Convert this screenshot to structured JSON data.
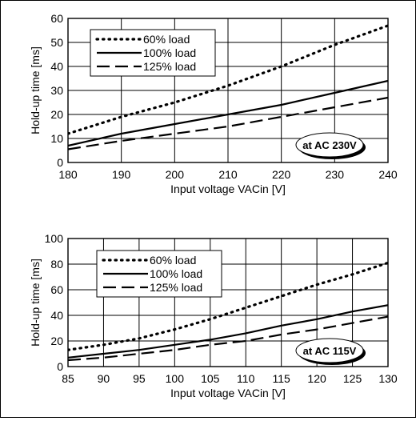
{
  "chart_data": [
    {
      "type": "line",
      "xlabel": "Input voltage VACin [V]",
      "ylabel": "Hold-up time [ms]",
      "xlim": [
        180,
        240
      ],
      "ylim": [
        0,
        60
      ],
      "xticks": [
        "180",
        "190",
        "200",
        "210",
        "220",
        "230",
        "240"
      ],
      "yticks": [
        "0",
        "10",
        "20",
        "30",
        "40",
        "50",
        "60"
      ],
      "grid": true,
      "legend_position": "top-left",
      "annotation": "at AC 230V",
      "series": [
        {
          "name": "60% load",
          "style": "dotted",
          "x": [
            180,
            190,
            200,
            210,
            220,
            230,
            240
          ],
          "y": [
            12,
            19,
            25,
            32,
            40,
            49,
            57
          ]
        },
        {
          "name": "100% load",
          "style": "solid",
          "x": [
            180,
            190,
            200,
            210,
            220,
            230,
            240
          ],
          "y": [
            7,
            12,
            16,
            20,
            24,
            29,
            34
          ]
        },
        {
          "name": "125% load",
          "style": "dashed",
          "x": [
            180,
            190,
            200,
            210,
            220,
            230,
            240
          ],
          "y": [
            5.5,
            9,
            12,
            15,
            19,
            23,
            27
          ]
        }
      ]
    },
    {
      "type": "line",
      "xlabel": "Input voltage VACin [V]",
      "ylabel": "Hold-up time [ms]",
      "xlim": [
        85,
        130
      ],
      "ylim": [
        0,
        100
      ],
      "xticks": [
        "85",
        "90",
        "95",
        "100",
        "105",
        "110",
        "115",
        "120",
        "125",
        "130"
      ],
      "yticks": [
        "0",
        "20",
        "40",
        "60",
        "80",
        "100"
      ],
      "grid": true,
      "legend_position": "top-left",
      "annotation": "at AC 115V",
      "series": [
        {
          "name": "60% load",
          "style": "dotted",
          "x": [
            85,
            90,
            95,
            100,
            105,
            110,
            115,
            120,
            125,
            130
          ],
          "y": [
            13,
            17,
            22,
            29,
            37,
            46,
            55,
            64,
            72,
            81
          ]
        },
        {
          "name": "100% load",
          "style": "solid",
          "x": [
            85,
            90,
            95,
            100,
            105,
            110,
            115,
            120,
            125,
            130
          ],
          "y": [
            7,
            10,
            13,
            17,
            21,
            26,
            32,
            37,
            43,
            48
          ]
        },
        {
          "name": "125% load",
          "style": "dashed",
          "x": [
            85,
            90,
            95,
            100,
            105,
            110,
            115,
            120,
            125,
            130
          ],
          "y": [
            5,
            7,
            10,
            13,
            17,
            20,
            25,
            29,
            34,
            39
          ]
        }
      ]
    }
  ]
}
